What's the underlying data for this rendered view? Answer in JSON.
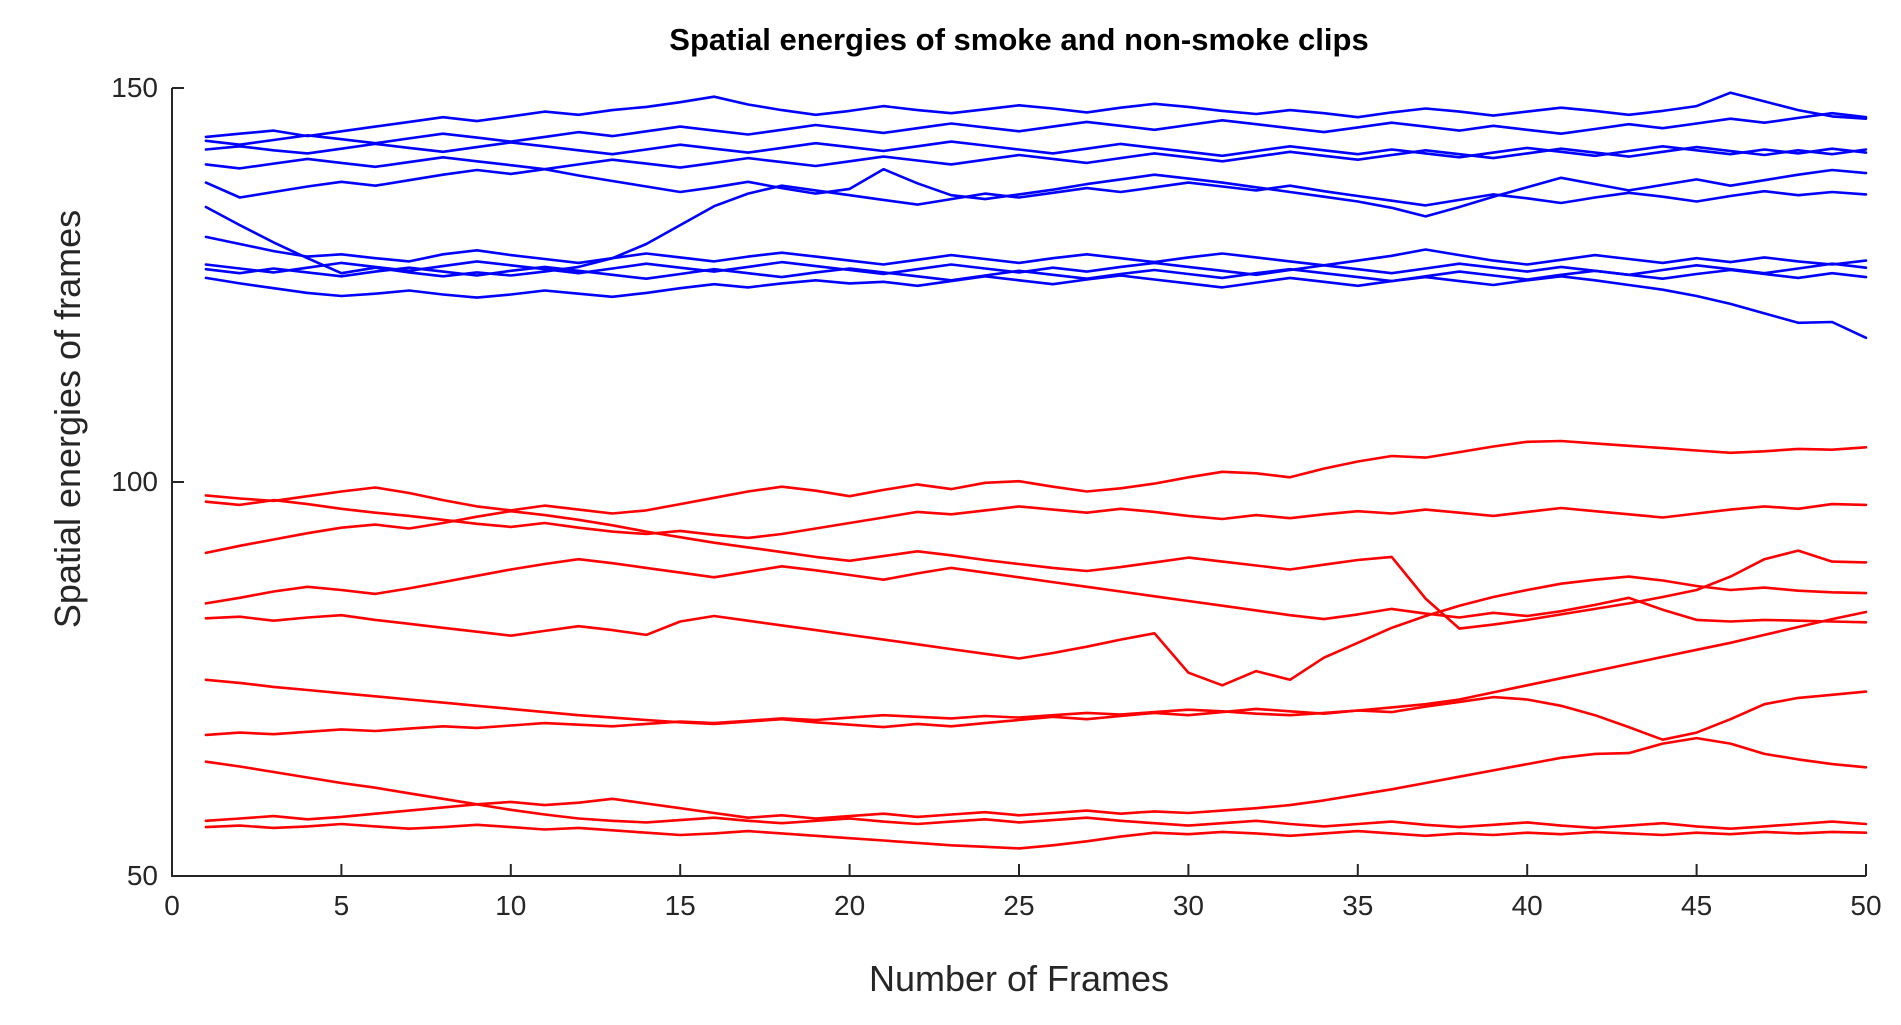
{
  "chart_data": {
    "type": "line",
    "title": "Spatial energies of smoke and non-smoke clips",
    "xlabel": "Number of Frames",
    "ylabel": "Spatial energies of frames",
    "x_start": 1,
    "x_step": 1,
    "n_points": 50,
    "xlim": [
      0,
      50
    ],
    "ylim": [
      50,
      150
    ],
    "x_ticks": [
      0,
      5,
      10,
      15,
      20,
      25,
      30,
      35,
      40,
      45,
      50
    ],
    "y_ticks": [
      50,
      100,
      150
    ],
    "grid": false,
    "legend_position": "none",
    "axis_color": "#262626",
    "blue_color": "#0000ff",
    "red_color": "#ff0000",
    "series": [
      {
        "name": "blue-01",
        "group": "blue-cluster",
        "color": "#0000ff",
        "values": [
          143.8,
          144.2,
          144.6,
          143.9,
          144.5,
          145.1,
          145.7,
          146.3,
          145.8,
          146.4,
          147.0,
          146.6,
          147.2,
          147.6,
          148.2,
          148.9,
          147.9,
          147.2,
          146.6,
          147.1,
          147.7,
          147.2,
          146.8,
          147.3,
          147.8,
          147.4,
          146.9,
          147.5,
          148.0,
          147.6,
          147.1,
          146.7,
          147.2,
          146.8,
          146.3,
          146.9,
          147.4,
          147.0,
          146.5,
          147.0,
          147.5,
          147.1,
          146.6,
          147.1,
          147.7,
          149.4,
          148.3,
          147.2,
          146.4,
          146.1
        ]
      },
      {
        "name": "blue-02",
        "group": "blue-cluster",
        "color": "#0000ff",
        "values": [
          143.3,
          142.8,
          143.4,
          144.0,
          143.5,
          143.0,
          143.6,
          144.2,
          143.7,
          143.2,
          143.8,
          144.4,
          143.9,
          144.5,
          145.1,
          144.6,
          144.1,
          144.7,
          145.3,
          144.8,
          144.3,
          144.9,
          145.5,
          145.0,
          144.5,
          145.1,
          145.7,
          145.2,
          144.7,
          145.3,
          145.9,
          145.4,
          144.9,
          144.4,
          145.0,
          145.6,
          145.1,
          144.6,
          145.2,
          144.7,
          144.2,
          144.8,
          145.4,
          144.9,
          145.5,
          146.1,
          145.6,
          146.2,
          146.8,
          146.3
        ]
      },
      {
        "name": "blue-03",
        "group": "blue-cluster",
        "color": "#0000ff",
        "values": [
          142.2,
          142.6,
          142.1,
          141.7,
          142.3,
          142.9,
          142.4,
          141.9,
          142.5,
          143.1,
          142.6,
          142.1,
          141.6,
          142.2,
          142.8,
          142.3,
          141.8,
          142.4,
          143.0,
          142.5,
          142.0,
          142.6,
          143.2,
          142.7,
          142.2,
          141.7,
          142.3,
          142.9,
          142.4,
          141.9,
          141.4,
          142.0,
          142.6,
          142.1,
          141.6,
          142.2,
          141.7,
          141.2,
          141.8,
          142.4,
          141.9,
          141.4,
          142.0,
          142.6,
          142.1,
          141.6,
          142.2,
          141.7,
          142.3,
          141.8
        ]
      },
      {
        "name": "blue-04",
        "group": "blue-cluster",
        "color": "#0000ff",
        "values": [
          140.3,
          139.8,
          140.4,
          141.0,
          140.5,
          140.0,
          140.6,
          141.2,
          140.7,
          140.2,
          139.7,
          140.3,
          140.9,
          140.4,
          139.9,
          140.5,
          141.1,
          140.6,
          140.1,
          140.7,
          141.3,
          140.8,
          140.3,
          140.9,
          141.5,
          141.0,
          140.5,
          141.1,
          141.7,
          141.2,
          140.7,
          141.3,
          141.9,
          141.4,
          140.9,
          141.5,
          142.1,
          141.6,
          141.1,
          141.7,
          142.3,
          141.8,
          141.3,
          141.9,
          142.5,
          142.0,
          141.5,
          142.1,
          141.6,
          142.2
        ]
      },
      {
        "name": "blue-05",
        "group": "blue-cluster",
        "color": "#0000ff",
        "values": [
          138.0,
          136.1,
          136.8,
          137.5,
          138.1,
          137.6,
          138.3,
          139.0,
          139.6,
          139.1,
          139.7,
          138.9,
          138.2,
          137.5,
          136.8,
          137.4,
          138.1,
          137.3,
          136.6,
          137.2,
          139.7,
          137.9,
          136.4,
          135.9,
          136.5,
          137.1,
          137.8,
          138.4,
          139.0,
          138.5,
          138.0,
          137.4,
          136.8,
          136.2,
          135.6,
          134.8,
          133.7,
          134.9,
          136.2,
          137.4,
          138.6,
          137.8,
          137.0,
          137.7,
          138.4,
          137.6,
          138.3,
          139.0,
          139.6,
          139.2
        ]
      },
      {
        "name": "blue-06",
        "group": "blue-cluster",
        "color": "#0000ff",
        "values": [
          134.9,
          132.6,
          130.4,
          128.4,
          126.5,
          127.2,
          126.6,
          126.1,
          126.6,
          126.2,
          126.7,
          127.3,
          128.4,
          130.2,
          132.6,
          135.0,
          136.6,
          137.6,
          137.0,
          136.4,
          135.8,
          135.2,
          135.9,
          136.6,
          136.1,
          136.7,
          137.3,
          136.8,
          137.4,
          138.0,
          137.5,
          137.0,
          137.6,
          136.9,
          136.3,
          135.7,
          135.1,
          135.8,
          136.5,
          136.0,
          135.4,
          136.1,
          136.7,
          136.2,
          135.6,
          136.3,
          136.9,
          136.4,
          136.8,
          136.5
        ]
      },
      {
        "name": "blue-07",
        "group": "blue-cluster",
        "color": "#0000ff",
        "values": [
          131.1,
          130.2,
          129.3,
          128.6,
          128.9,
          128.4,
          128.0,
          128.9,
          129.4,
          128.8,
          128.3,
          127.8,
          128.4,
          129.0,
          128.5,
          128.0,
          128.6,
          129.1,
          128.6,
          128.1,
          127.6,
          128.2,
          128.8,
          128.3,
          127.8,
          128.4,
          128.9,
          128.4,
          127.9,
          128.5,
          129.0,
          128.5,
          128.0,
          127.5,
          128.1,
          128.7,
          129.5,
          128.8,
          128.1,
          127.6,
          128.2,
          128.8,
          128.3,
          127.8,
          128.4,
          127.9,
          128.5,
          128.0,
          127.6,
          128.1
        ]
      },
      {
        "name": "blue-08",
        "group": "blue-cluster",
        "color": "#0000ff",
        "values": [
          127.6,
          127.1,
          126.6,
          127.2,
          127.8,
          127.3,
          126.8,
          127.4,
          128.0,
          127.5,
          127.0,
          126.5,
          127.1,
          127.7,
          127.2,
          126.7,
          127.3,
          127.9,
          127.4,
          126.9,
          126.4,
          127.0,
          127.6,
          127.1,
          126.6,
          127.2,
          126.7,
          127.3,
          127.8,
          127.3,
          126.8,
          126.3,
          126.9,
          127.5,
          127.0,
          126.5,
          127.1,
          127.7,
          127.2,
          126.7,
          127.3,
          126.8,
          126.3,
          126.9,
          127.5,
          127.0,
          126.5,
          127.1,
          127.7,
          127.2
        ]
      },
      {
        "name": "blue-09",
        "group": "blue-cluster",
        "color": "#0000ff",
        "values": [
          127.0,
          126.5,
          127.1,
          126.6,
          126.1,
          126.7,
          127.2,
          126.7,
          126.2,
          126.8,
          127.3,
          126.8,
          126.3,
          125.8,
          126.4,
          127.0,
          126.5,
          126.0,
          126.6,
          127.1,
          126.6,
          126.1,
          125.6,
          126.2,
          126.8,
          126.3,
          125.8,
          126.4,
          126.9,
          126.4,
          125.9,
          126.5,
          127.0,
          126.5,
          126.0,
          125.5,
          126.1,
          126.7,
          126.2,
          125.7,
          126.3,
          126.8,
          126.3,
          125.8,
          126.4,
          126.9,
          126.4,
          125.9,
          126.5,
          126.0
        ]
      },
      {
        "name": "blue-10",
        "group": "blue-cluster",
        "color": "#0000ff",
        "values": [
          125.9,
          125.2,
          124.6,
          124.0,
          123.6,
          123.9,
          124.3,
          123.8,
          123.4,
          123.8,
          124.3,
          123.9,
          123.5,
          124.0,
          124.6,
          125.1,
          124.7,
          125.2,
          125.6,
          125.2,
          125.4,
          124.9,
          125.5,
          126.1,
          125.6,
          125.1,
          125.7,
          126.2,
          125.7,
          125.2,
          124.7,
          125.3,
          125.9,
          125.4,
          124.9,
          125.5,
          126.0,
          125.5,
          125.0,
          125.6,
          126.1,
          125.6,
          125.0,
          124.4,
          123.6,
          122.6,
          121.4,
          120.2,
          120.3,
          118.3
        ]
      },
      {
        "name": "red-01",
        "group": "red-cluster",
        "color": "#ff0000",
        "values": [
          98.3,
          97.9,
          97.6,
          98.2,
          98.8,
          99.3,
          98.6,
          97.7,
          96.9,
          96.4,
          97.0,
          96.5,
          96.0,
          96.4,
          97.2,
          98.0,
          98.8,
          99.4,
          98.9,
          98.2,
          99.0,
          99.7,
          99.1,
          99.9,
          100.1,
          99.4,
          98.8,
          99.2,
          99.8,
          100.6,
          101.3,
          101.1,
          100.6,
          101.7,
          102.6,
          103.3,
          103.1,
          103.8,
          104.5,
          105.1,
          105.2,
          104.9,
          104.6,
          104.3,
          104.0,
          103.7,
          103.9,
          104.2,
          104.1,
          104.4
        ]
      },
      {
        "name": "red-02",
        "group": "red-cluster",
        "color": "#ff0000",
        "values": [
          97.5,
          97.1,
          97.7,
          97.2,
          96.6,
          96.1,
          95.7,
          95.2,
          94.7,
          94.3,
          94.8,
          94.2,
          93.7,
          93.4,
          93.8,
          93.3,
          92.9,
          93.4,
          94.1,
          94.8,
          95.5,
          96.2,
          95.9,
          96.4,
          96.9,
          96.5,
          96.1,
          96.6,
          96.2,
          95.7,
          95.3,
          95.8,
          95.4,
          95.9,
          96.3,
          96.0,
          96.5,
          96.1,
          95.7,
          96.2,
          96.7,
          96.3,
          95.9,
          95.5,
          96.0,
          96.5,
          96.9,
          96.6,
          97.2,
          97.1
        ]
      },
      {
        "name": "red-03",
        "group": "red-cluster",
        "color": "#ff0000",
        "values": [
          91.0,
          91.9,
          92.7,
          93.5,
          94.2,
          94.6,
          94.1,
          94.8,
          95.6,
          96.3,
          95.8,
          95.2,
          94.5,
          93.7,
          93.0,
          92.3,
          91.7,
          91.1,
          90.5,
          90.0,
          90.6,
          91.2,
          90.7,
          90.1,
          89.6,
          89.1,
          88.7,
          89.2,
          89.8,
          90.4,
          89.9,
          89.4,
          88.9,
          89.5,
          90.1,
          90.5,
          85.2,
          81.4,
          81.9,
          82.5,
          83.2,
          83.9,
          84.6,
          85.4,
          86.3,
          88.0,
          90.2,
          91.3,
          89.9,
          89.8
        ]
      },
      {
        "name": "red-04",
        "group": "red-cluster",
        "color": "#ff0000",
        "values": [
          84.6,
          85.3,
          86.1,
          86.7,
          86.3,
          85.8,
          86.5,
          87.3,
          88.1,
          88.9,
          89.6,
          90.2,
          89.7,
          89.1,
          88.5,
          87.9,
          88.6,
          89.3,
          88.8,
          88.2,
          87.6,
          88.4,
          89.1,
          88.5,
          87.9,
          87.3,
          86.7,
          86.1,
          85.5,
          84.9,
          84.3,
          83.7,
          83.1,
          82.6,
          83.2,
          83.9,
          83.3,
          82.8,
          83.4,
          83.0,
          83.6,
          84.4,
          85.3,
          83.8,
          82.5,
          82.3,
          82.5,
          82.4,
          82.3,
          82.2
        ]
      },
      {
        "name": "red-05",
        "group": "red-cluster",
        "color": "#ff0000",
        "values": [
          82.7,
          82.9,
          82.4,
          82.8,
          83.1,
          82.5,
          82.0,
          81.5,
          81.0,
          80.5,
          81.1,
          81.7,
          81.2,
          80.6,
          82.3,
          83.0,
          82.4,
          81.8,
          81.2,
          80.6,
          80.0,
          79.4,
          78.8,
          78.2,
          77.6,
          78.3,
          79.1,
          80.0,
          80.8,
          75.8,
          74.2,
          76.0,
          74.9,
          77.7,
          79.6,
          81.5,
          83.0,
          84.3,
          85.4,
          86.3,
          87.1,
          87.6,
          88.0,
          87.5,
          86.8,
          86.3,
          86.6,
          86.2,
          86.0,
          85.9
        ]
      },
      {
        "name": "red-06",
        "group": "red-cluster",
        "color": "#ff0000",
        "values": [
          74.9,
          74.5,
          74.0,
          73.6,
          73.2,
          72.8,
          72.4,
          72.0,
          71.6,
          71.2,
          70.8,
          70.4,
          70.1,
          69.8,
          69.5,
          69.3,
          69.6,
          69.9,
          69.5,
          69.2,
          68.9,
          69.3,
          69.0,
          69.4,
          69.8,
          70.2,
          69.9,
          70.3,
          70.7,
          70.4,
          70.8,
          71.2,
          70.9,
          70.6,
          71.0,
          71.4,
          71.8,
          72.4,
          73.3,
          74.2,
          75.1,
          76.0,
          76.9,
          77.8,
          78.7,
          79.6,
          80.6,
          81.6,
          82.6,
          83.5
        ]
      },
      {
        "name": "red-07",
        "group": "red-cluster",
        "color": "#ff0000",
        "values": [
          67.9,
          68.2,
          68.0,
          68.3,
          68.6,
          68.4,
          68.7,
          69.0,
          68.8,
          69.1,
          69.4,
          69.2,
          69.0,
          69.3,
          69.6,
          69.4,
          69.7,
          70.0,
          69.8,
          70.1,
          70.4,
          70.2,
          70.0,
          70.3,
          70.1,
          70.4,
          70.7,
          70.5,
          70.8,
          71.1,
          70.9,
          70.6,
          70.4,
          70.7,
          71.0,
          70.8,
          71.5,
          72.1,
          72.7,
          72.4,
          71.6,
          70.4,
          68.9,
          67.3,
          68.2,
          69.9,
          71.8,
          72.6,
          73.0,
          73.4
        ]
      },
      {
        "name": "red-08",
        "group": "red-cluster",
        "color": "#ff0000",
        "values": [
          64.5,
          63.9,
          63.2,
          62.5,
          61.8,
          61.2,
          60.5,
          59.8,
          59.1,
          58.4,
          57.8,
          57.3,
          57.0,
          56.8,
          57.1,
          57.4,
          57.0,
          56.7,
          57.0,
          57.3,
          56.9,
          56.6,
          56.9,
          57.2,
          56.8,
          57.1,
          57.4,
          57.0,
          56.7,
          56.4,
          56.7,
          57.0,
          56.6,
          56.3,
          56.6,
          56.9,
          56.5,
          56.2,
          56.5,
          56.8,
          56.4,
          56.1,
          56.4,
          56.7,
          56.3,
          56.0,
          56.3,
          56.6,
          56.9,
          56.6
        ]
      },
      {
        "name": "red-09",
        "group": "red-cluster",
        "color": "#ff0000",
        "values": [
          57.0,
          57.3,
          57.6,
          57.2,
          57.5,
          57.9,
          58.3,
          58.7,
          59.1,
          59.4,
          59.0,
          59.3,
          59.8,
          59.2,
          58.6,
          58.0,
          57.4,
          57.7,
          57.3,
          57.6,
          57.9,
          57.5,
          57.8,
          58.1,
          57.7,
          58.0,
          58.3,
          57.9,
          58.2,
          58.0,
          58.3,
          58.6,
          59.0,
          59.6,
          60.3,
          61.0,
          61.8,
          62.6,
          63.4,
          64.2,
          65.0,
          65.5,
          65.6,
          66.8,
          67.5,
          66.8,
          65.5,
          64.8,
          64.2,
          63.8
        ]
      },
      {
        "name": "red-10",
        "group": "red-cluster",
        "color": "#ff0000",
        "values": [
          56.2,
          56.4,
          56.1,
          56.3,
          56.6,
          56.3,
          56.0,
          56.2,
          56.5,
          56.2,
          55.9,
          56.1,
          55.8,
          55.5,
          55.2,
          55.4,
          55.7,
          55.4,
          55.1,
          54.8,
          54.5,
          54.2,
          53.9,
          53.7,
          53.5,
          53.9,
          54.4,
          55.0,
          55.5,
          55.3,
          55.6,
          55.4,
          55.1,
          55.4,
          55.7,
          55.4,
          55.1,
          55.4,
          55.2,
          55.5,
          55.3,
          55.6,
          55.4,
          55.2,
          55.5,
          55.3,
          55.6,
          55.4,
          55.6,
          55.5
        ]
      }
    ]
  }
}
